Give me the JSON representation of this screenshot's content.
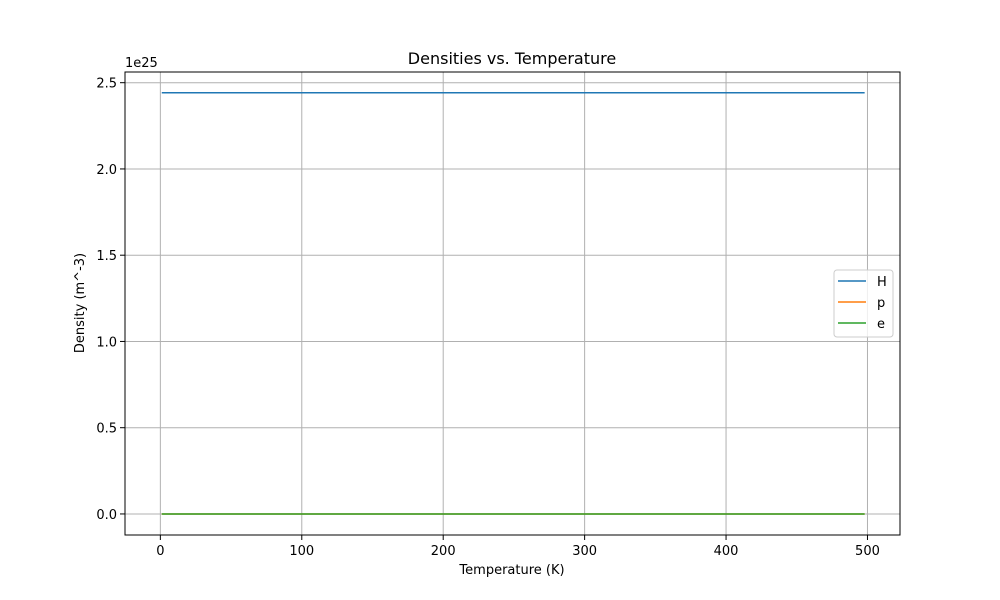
{
  "chart_data": {
    "type": "line",
    "title": "Densities vs. Temperature",
    "xlabel": "Temperature (K)",
    "ylabel": "Density (m^-3)",
    "y_offset_text": "1e25",
    "y_scale_factor": 1e+25,
    "xlim": [
      -25,
      523
    ],
    "ylim": [
      -0.122,
      2.562
    ],
    "x_ticks": [
      0,
      100,
      200,
      300,
      400,
      500
    ],
    "x_tick_labels": [
      "0",
      "100",
      "200",
      "300",
      "400",
      "500"
    ],
    "y_ticks": [
      0.0,
      0.5,
      1.0,
      1.5,
      2.0,
      2.5
    ],
    "y_tick_labels": [
      "0.0",
      "0.5",
      "1.0",
      "1.5",
      "2.0",
      "2.5"
    ],
    "grid": true,
    "legend_placement": "center-right",
    "x": [
      1,
      498
    ],
    "series": [
      {
        "name": "H",
        "color": "#1f77b4",
        "values": [
          2.442,
          2.442
        ]
      },
      {
        "name": "p",
        "color": "#ff7f0e",
        "values": [
          0.0,
          0.0
        ]
      },
      {
        "name": "e",
        "color": "#2ca02c",
        "values": [
          0.0,
          0.0
        ]
      }
    ]
  }
}
